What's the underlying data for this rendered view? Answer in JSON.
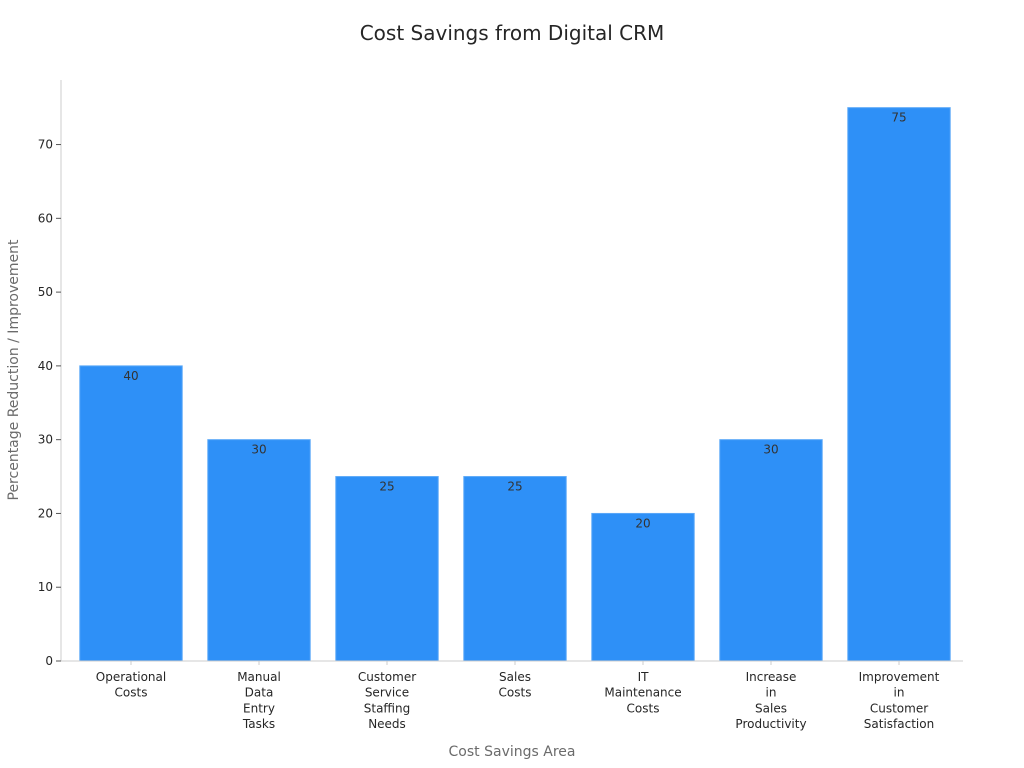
{
  "chart_data": {
    "type": "bar",
    "title": "Cost Savings from Digital CRM",
    "xlabel": "Cost Savings Area",
    "ylabel": "Percentage Reduction / Improvement",
    "categories": [
      "Operational Costs",
      "Manual Data Entry Tasks",
      "Customer Service Staffing Needs",
      "Sales Costs",
      "IT Maintenance Costs",
      "Increase in Sales Productivity",
      "Improvement in Customer Satisfaction"
    ],
    "values": [
      40,
      30,
      25,
      25,
      20,
      30,
      75
    ],
    "data_labels": [
      "40",
      "30",
      "25",
      "25",
      "20",
      "30",
      "75"
    ],
    "yticks": [
      0,
      10,
      20,
      30,
      40,
      50,
      60,
      70
    ],
    "ylim": [
      0,
      78.75
    ],
    "grid": false,
    "colors": {
      "bar": "#2e90f7",
      "bar_edge": "#5aa8f8",
      "axis": "#cccccc",
      "text": "#262626",
      "label": "#6b6b6b"
    }
  }
}
